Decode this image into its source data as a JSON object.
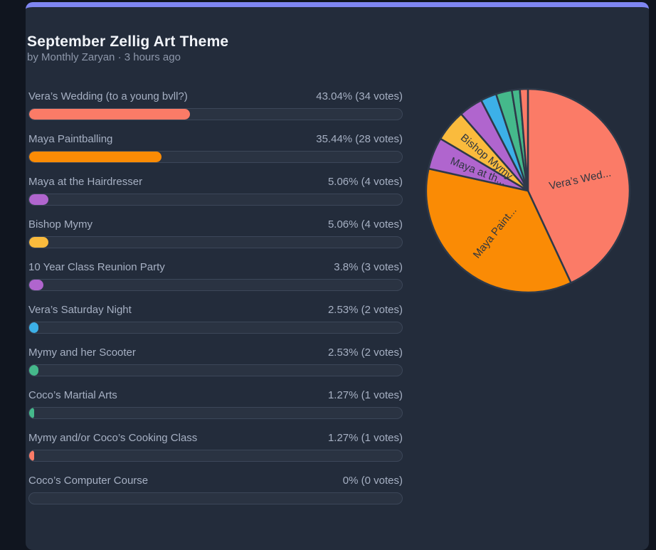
{
  "header": {
    "title": "September Zellig Art Theme",
    "byline_prefix": "by",
    "author": "Monthly Zaryan",
    "separator": "·",
    "time": "3 hours ago"
  },
  "poll": {
    "options": [
      {
        "label": "Vera’s Wedding (to a young bvll?)",
        "percent_text": "43.04% (34 votes)",
        "percent": 43.04,
        "votes": 34,
        "color": "#fb7b67"
      },
      {
        "label": "Maya Paintballing",
        "percent_text": "35.44% (28 votes)",
        "percent": 35.44,
        "votes": 28,
        "color": "#fa8b05"
      },
      {
        "label": "Maya at the Hairdresser",
        "percent_text": "5.06% (4 votes)",
        "percent": 5.06,
        "votes": 4,
        "color": "#b065ce"
      },
      {
        "label": "Bishop Mymy",
        "percent_text": "5.06% (4 votes)",
        "percent": 5.06,
        "votes": 4,
        "color": "#fabb3d"
      },
      {
        "label": "10 Year Class Reunion Party",
        "percent_text": "3.8% (3 votes)",
        "percent": 3.8,
        "votes": 3,
        "color": "#b065ce"
      },
      {
        "label": "Vera’s Saturday Night",
        "percent_text": "2.53% (2 votes)",
        "percent": 2.53,
        "votes": 2,
        "color": "#3cb0e8"
      },
      {
        "label": "Mymy and her Scooter",
        "percent_text": "2.53% (2 votes)",
        "percent": 2.53,
        "votes": 2,
        "color": "#45b98b"
      },
      {
        "label": "Coco’s Martial Arts",
        "percent_text": "1.27% (1 votes)",
        "percent": 1.27,
        "votes": 1,
        "color": "#45b98b"
      },
      {
        "label": "Mymy and/or Coco’s Cooking Class",
        "percent_text": "1.27% (1 votes)",
        "percent": 1.27,
        "votes": 1,
        "color": "#fb7b67"
      },
      {
        "label": "Coco’s Computer Course",
        "percent_text": "0% (0 votes)",
        "percent": 0,
        "votes": 0,
        "color": null
      }
    ]
  },
  "chart_data": {
    "type": "pie",
    "title": "September Zellig Art Theme",
    "categories": [
      "Vera’s Wedding (to a young bvll?)",
      "Maya Paintballing",
      "Maya at the Hairdresser",
      "Bishop Mymy",
      "10 Year Class Reunion Party",
      "Vera’s Saturday Night",
      "Mymy and her Scooter",
      "Coco’s Martial Arts",
      "Mymy and/or Coco’s Cooking Class",
      "Coco’s Computer Course"
    ],
    "values": [
      43.04,
      35.44,
      5.06,
      5.06,
      3.8,
      2.53,
      2.53,
      1.27,
      1.27,
      0
    ],
    "votes": [
      34,
      28,
      4,
      4,
      3,
      2,
      2,
      1,
      1,
      0
    ],
    "colors": [
      "#fb7b67",
      "#fa8b05",
      "#b065ce",
      "#fabb3d",
      "#b065ce",
      "#3cb0e8",
      "#45b98b",
      "#45b98b",
      "#fb7b67",
      null
    ],
    "slice_labels": [
      "Vera’s Wed...",
      "Maya Paint...",
      "Maya at th...",
      "Bishop Mymy",
      "",
      "",
      "",
      "",
      "",
      ""
    ],
    "start_angle": "top",
    "direction": "clockwise",
    "divider_color": "#2e3949",
    "label_color": "#2f3640",
    "legend": "none"
  },
  "theme": {
    "accent_top_border": "#7f86f2",
    "card_bg": "#232c3b",
    "page_bg": "#10151f",
    "track_bg": "#2a3342",
    "track_border": "#3c4759",
    "text_primary": "#f1f4f9",
    "text_secondary": "#a6b0c3",
    "text_muted": "#8d97aa"
  }
}
